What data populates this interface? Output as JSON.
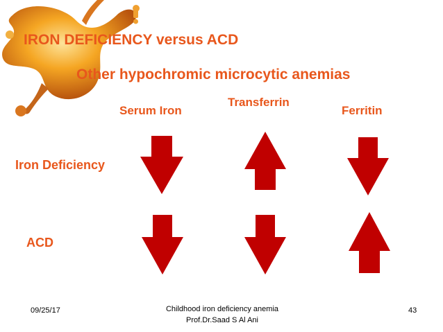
{
  "slide": {
    "title": "IRON DEFICIENCY versus ACD",
    "subtitle": "Other hypochromic microcytic anemias",
    "columns": [
      "Serum Iron",
      "Transferrin",
      "Ferritin"
    ],
    "rows": [
      {
        "label": "Iron Deficiency",
        "arrows": [
          "down",
          "up",
          "down"
        ]
      },
      {
        "label": "ACD",
        "arrows": [
          "down",
          "down",
          "up"
        ]
      }
    ],
    "colors": {
      "text": "#e8571c",
      "arrow": "#c00000"
    }
  },
  "footer": {
    "date": "09/25/17",
    "line1": "Childhood iron deficiency anemia",
    "line2": "Prof.Dr.Saad S Al Ani",
    "page": "43"
  }
}
